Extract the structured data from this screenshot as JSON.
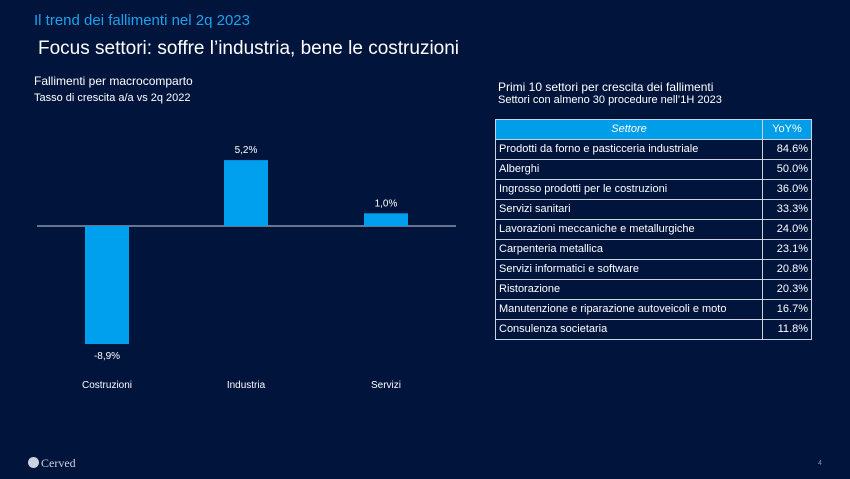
{
  "header": {
    "kicker": "Il trend dei fallimenti nel 2q 2023",
    "headline": "Focus settori: soffre l’industria, bene le costruzioni"
  },
  "chart_data": {
    "type": "bar",
    "title": "Fallimenti per  macrocomparto",
    "subtitle": "Tasso di crescita a/a vs 2q 2022",
    "categories": [
      "Costruzioni",
      "Industria",
      "Servizi"
    ],
    "values": [
      -8.9,
      5.2,
      1.0
    ],
    "value_labels": [
      "-8,9%",
      "5,2%",
      "1,0%"
    ],
    "ylim": [
      -9.5,
      6.0
    ],
    "grid": false,
    "bar_color": "#00a0ee"
  },
  "table": {
    "title": "Primi 10 settori per crescita dei fallimenti",
    "subtitle": "Settori con almeno 30 procedure nell’1H 2023",
    "headers": [
      "Settore",
      "YoY%"
    ],
    "rows": [
      [
        "Prodotti da forno e pasticceria industriale",
        "84.6%"
      ],
      [
        "Alberghi",
        "50.0%"
      ],
      [
        "Ingrosso prodotti per le costruzioni",
        "36.0%"
      ],
      [
        "Servizi sanitari",
        "33.3%"
      ],
      [
        "Lavorazioni meccaniche e metallurgiche",
        "24.0%"
      ],
      [
        "Carpenteria metallica",
        "23.1%"
      ],
      [
        "Servizi informatici e software",
        "20.8%"
      ],
      [
        "Ristorazione",
        "20.3%"
      ],
      [
        "Manutenzione e riparazione autoveicoli e moto",
        "16.7%"
      ],
      [
        "Consulenza societaria",
        "11.8%"
      ]
    ]
  },
  "footer": {
    "logo_text": "Cerved",
    "page_number": "4"
  }
}
